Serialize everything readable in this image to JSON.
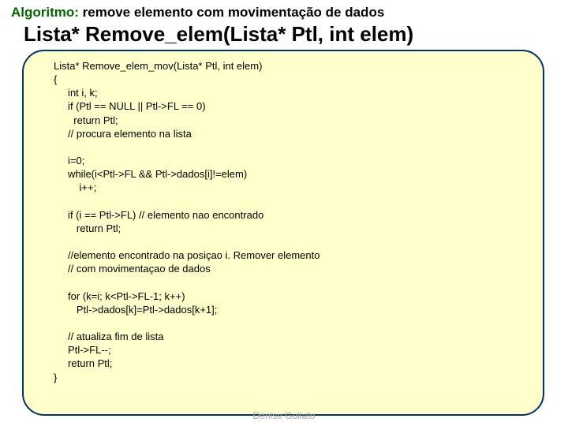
{
  "header": {
    "keyword": "Algoritmo:",
    "rest": " remove elemento com movimentação de dados",
    "signature": "Lista* Remove_elem(Lista* Ptl, int elem)"
  },
  "code": {
    "lines": [
      "Lista* Remove_elem_mov(Lista* Ptl, int elem)",
      "{",
      "     int i, k;",
      "     if (Ptl == NULL || Ptl->FL == 0)",
      "       return Ptl;",
      "     // procura elemento na lista",
      "",
      "     i=0;",
      "     while(i<Ptl->FL && Ptl->dados[i]!=elem)",
      "         i++;",
      "",
      "     if (i == Ptl->FL) // elemento nao encontrado",
      "        return Ptl;",
      "",
      "     //elemento encontrado na posiçao i. Remover elemento",
      "     // com movimentaçao de dados",
      "",
      "     for (k=i; k<Ptl->FL-1; k++)",
      "        Ptl->dados[k]=Ptl->dados[k+1];",
      "",
      "     // atualiza fim de lista",
      "     Ptl->FL--;",
      "     return Ptl;",
      "}"
    ]
  },
  "footer": {
    "author": "Denise Guliato"
  },
  "colors": {
    "code_bg": "#ffffcc",
    "code_border": "#003366",
    "keyword": "#006600",
    "footer_text": "#a8a8a8"
  }
}
